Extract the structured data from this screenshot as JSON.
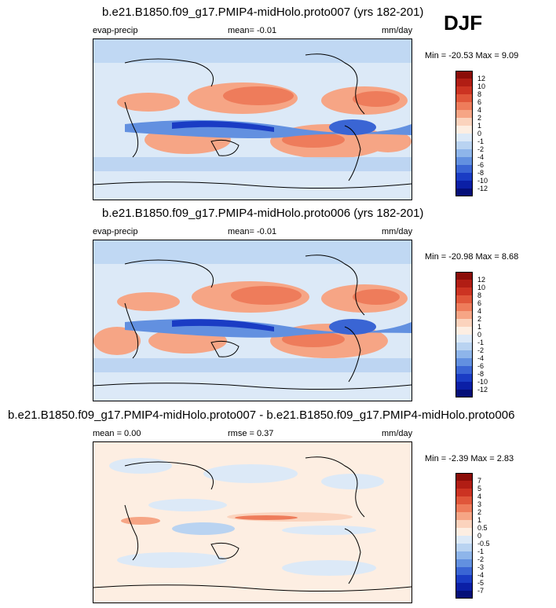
{
  "season": "DJF",
  "panels": [
    {
      "title": "b.e21.B1850.f09_g17.PMIP4-midHolo.proto007 (yrs 182-201)",
      "left_label": "evap-precip",
      "center_label": "mean=  -0.01",
      "units": "mm/day",
      "minmax": "Min = -20.53 Max =   9.09",
      "colorbar_labels": [
        "12",
        "10",
        "8",
        "6",
        "4",
        "2",
        "1",
        "0",
        "-1",
        "-2",
        "-4",
        "-6",
        "-8",
        "-10",
        "-12"
      ],
      "colorbar_colors": [
        "#8b0d08",
        "#b11d14",
        "#cc3322",
        "#e0563a",
        "#ee7c5b",
        "#f6a585",
        "#fbd3bd",
        "#fdeee2",
        "#dce9f7",
        "#b9d3f1",
        "#8eb5ea",
        "#6290e0",
        "#3a65d4",
        "#1a3cc4",
        "#0b1fa6",
        "#050f78"
      ]
    },
    {
      "title": "b.e21.B1850.f09_g17.PMIP4-midHolo.proto006 (yrs 182-201)",
      "left_label": "evap-precip",
      "center_label": "mean=  -0.01",
      "units": "mm/day",
      "minmax": "Min = -20.98 Max =   8.68",
      "colorbar_labels": [
        "12",
        "10",
        "8",
        "6",
        "4",
        "2",
        "1",
        "0",
        "-1",
        "-2",
        "-4",
        "-6",
        "-8",
        "-10",
        "-12"
      ],
      "colorbar_colors": [
        "#8b0d08",
        "#b11d14",
        "#cc3322",
        "#e0563a",
        "#ee7c5b",
        "#f6a585",
        "#fbd3bd",
        "#fdeee2",
        "#dce9f7",
        "#b9d3f1",
        "#8eb5ea",
        "#6290e0",
        "#3a65d4",
        "#1a3cc4",
        "#0b1fa6",
        "#050f78"
      ]
    },
    {
      "title": "b.e21.B1850.f09_g17.PMIP4-midHolo.proto007 - b.e21.B1850.f09_g17.PMIP4-midHolo.proto006",
      "left_label": "mean =   0.00",
      "center_label": "rmse =   0.37",
      "units": "mm/day",
      "minmax": "Min =  -2.39 Max =   2.83",
      "colorbar_labels": [
        "7",
        "5",
        "4",
        "3",
        "2",
        "1",
        "0.5",
        "0",
        "-0.5",
        "-1",
        "-2",
        "-3",
        "-4",
        "-5",
        "-7"
      ],
      "colorbar_colors": [
        "#8b0d08",
        "#b11d14",
        "#cc3322",
        "#e0563a",
        "#ee7c5b",
        "#f6a585",
        "#fbd3bd",
        "#fdeee2",
        "#dce9f7",
        "#b9d3f1",
        "#8eb5ea",
        "#6290e0",
        "#3a65d4",
        "#1a3cc4",
        "#0b1fa6",
        "#050f78"
      ]
    }
  ]
}
